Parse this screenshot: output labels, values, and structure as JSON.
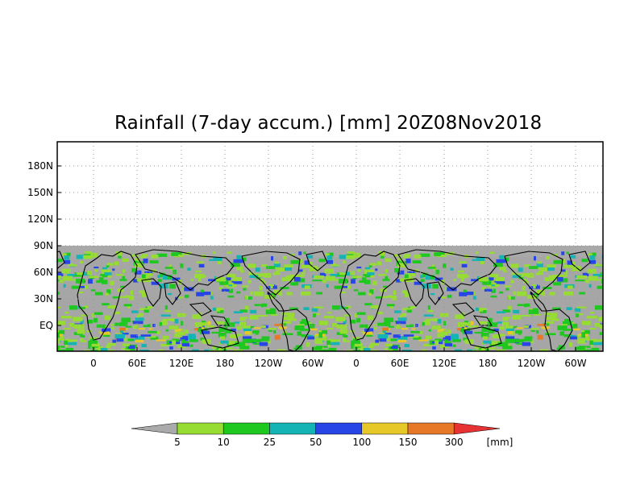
{
  "title": "Rainfall (7-day accum.) [mm] 20Z08Nov2018",
  "lat_labels": [
    "180N",
    "150N",
    "120N",
    "90N",
    "60N",
    "30N",
    "EQ"
  ],
  "lat_values": [
    180,
    150,
    120,
    90,
    60,
    30,
    0
  ],
  "lon_labels": [
    "0",
    "60E",
    "120E",
    "180",
    "120W",
    "60W",
    "0",
    "60E",
    "120E",
    "180",
    "120W",
    "60W"
  ],
  "colorbar": {
    "labels": [
      "5",
      "10",
      "25",
      "50",
      "100",
      "150",
      "300"
    ],
    "unit": "[mm]",
    "colors": [
      "#aaaaaa",
      "#96dc32",
      "#1ec81e",
      "#14b4b4",
      "#2846e6",
      "#e6c828",
      "#e67828",
      "#e63232"
    ]
  },
  "colors": {
    "nodata_gray": "#a6a6a6",
    "coast": "#000000",
    "grid": "#999999"
  },
  "map": {
    "lat_range": [
      -30,
      200
    ],
    "data_lat_top": 90,
    "lon_repeats": 2
  }
}
